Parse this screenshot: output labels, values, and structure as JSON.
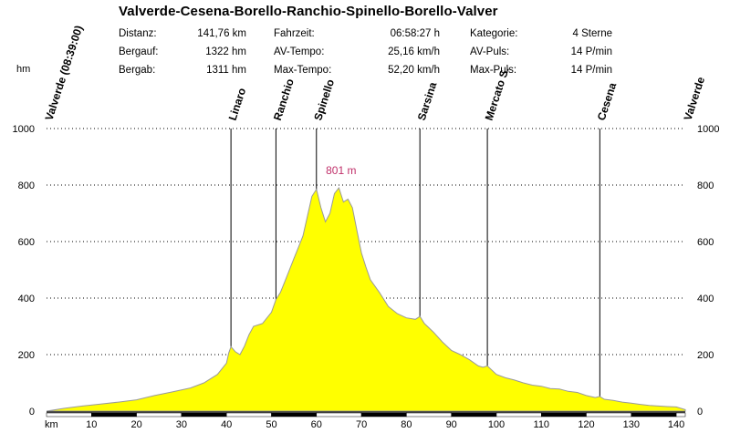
{
  "header": {
    "title": "Valverde-Cesena-Borello-Ranchio-Spinello-Borello-Valver",
    "stats": [
      {
        "label": "Distanz:",
        "value": "141,76 km"
      },
      {
        "label": "Bergauf:",
        "value": "1322 hm"
      },
      {
        "label": "Bergab:",
        "value": "1311 hm"
      },
      {
        "label": "Fahrzeit:",
        "value": "06:58:27 h"
      },
      {
        "label": "AV-Tempo:",
        "value": "25,16 km/h"
      },
      {
        "label": "Max-Tempo:",
        "value": "52,20 km/h"
      },
      {
        "label": "Kategorie:",
        "value": "4 Sterne"
      },
      {
        "label": "AV-Puls:",
        "value": "14 P/min"
      },
      {
        "label": "Max-Puls:",
        "value": "14 P/min"
      }
    ]
  },
  "chart_data": {
    "type": "area",
    "title": "",
    "xlabel": "km",
    "ylabel": "hm",
    "xlim": [
      0,
      142
    ],
    "ylim": [
      0,
      1000
    ],
    "x_ticks": [
      10,
      20,
      30,
      40,
      50,
      60,
      70,
      80,
      90,
      100,
      110,
      120,
      130,
      140
    ],
    "y_ticks": [
      0,
      200,
      400,
      600,
      800,
      1000
    ],
    "grid": "dotted-horizontal",
    "fill_color": "#ffff00",
    "outline_color": "#999999",
    "peak_label": "801 m",
    "peak_x": 60,
    "peak_y": 790,
    "waypoints": [
      {
        "name": "Valverde (08:39:00)",
        "km": 0
      },
      {
        "name": "Linaro",
        "km": 41
      },
      {
        "name": "Ranchio",
        "km": 51
      },
      {
        "name": "Spinello",
        "km": 60
      },
      {
        "name": "Sarsina",
        "km": 83
      },
      {
        "name": "Mercato S.",
        "km": 98
      },
      {
        "name": "Cesena",
        "km": 123
      },
      {
        "name": "Valverde",
        "km": 142
      }
    ],
    "profile": {
      "x": [
        0,
        4,
        8,
        12,
        16,
        20,
        24,
        28,
        32,
        35,
        38,
        40,
        40.5,
        41,
        42,
        43,
        44,
        45,
        46,
        48,
        50,
        51,
        52,
        53,
        54,
        55,
        56,
        57,
        58,
        59,
        60,
        61,
        62,
        63,
        64,
        65,
        66,
        67,
        68,
        69,
        70,
        71,
        72,
        74,
        76,
        78,
        80,
        82,
        83,
        84,
        86,
        88,
        90,
        92,
        94,
        96,
        97,
        98,
        100,
        102,
        104,
        106,
        108,
        110,
        112,
        114,
        116,
        118,
        120,
        122,
        123,
        124,
        126,
        128,
        130,
        132,
        134,
        136,
        138,
        140,
        142
      ],
      "y": [
        0,
        10,
        18,
        25,
        32,
        40,
        55,
        68,
        82,
        100,
        130,
        170,
        205,
        228,
        210,
        200,
        230,
        270,
        300,
        310,
        350,
        395,
        420,
        460,
        500,
        540,
        580,
        620,
        690,
        760,
        785,
        720,
        670,
        700,
        770,
        790,
        740,
        750,
        720,
        640,
        560,
        510,
        465,
        420,
        370,
        345,
        330,
        325,
        335,
        310,
        280,
        245,
        215,
        200,
        182,
        160,
        155,
        160,
        130,
        118,
        110,
        100,
        92,
        88,
        80,
        78,
        70,
        66,
        55,
        48,
        52,
        42,
        38,
        32,
        28,
        24,
        20,
        18,
        16,
        15,
        5
      ]
    }
  }
}
